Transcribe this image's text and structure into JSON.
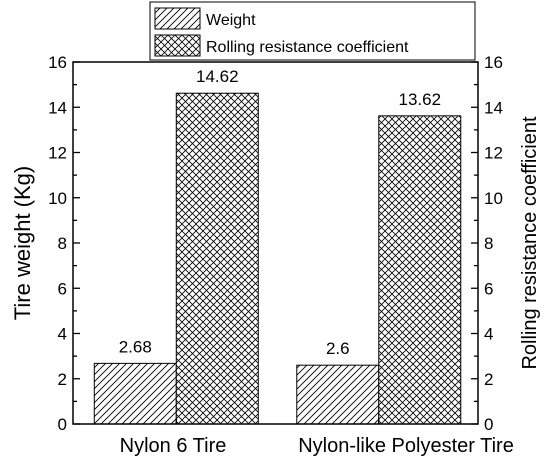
{
  "chart_data": {
    "type": "bar",
    "categories": [
      "Nylon 6 Tire",
      "Nylon-like Polyester Tire"
    ],
    "series": [
      {
        "name": "Weight",
        "values": [
          2.68,
          2.6
        ],
        "axis": "left",
        "pattern": "hatch-diagonal",
        "data_labels": [
          "2.68",
          "2.6"
        ]
      },
      {
        "name": "Rolling resistance coefficient",
        "values": [
          14.62,
          13.62
        ],
        "axis": "right",
        "pattern": "hatch-crosshatch",
        "data_labels": [
          "14.62",
          "13.62"
        ]
      }
    ],
    "ylabel": "Tire weight (Kg)",
    "ylabel_right": "Rolling resistance coefficient",
    "ylim": [
      0,
      16
    ],
    "ylim_right": [
      0,
      16
    ],
    "y_ticks": [
      "0",
      "2",
      "4",
      "6",
      "8",
      "10",
      "12",
      "14",
      "16"
    ],
    "y_ticks_right": [
      "0",
      "2",
      "4",
      "6",
      "8",
      "10",
      "12",
      "14",
      "16"
    ],
    "grid": false,
    "legend_position": "top-center",
    "colors": {
      "bar_fill": "#ffffff",
      "hatch": "#000000",
      "axis": "#000000"
    }
  }
}
